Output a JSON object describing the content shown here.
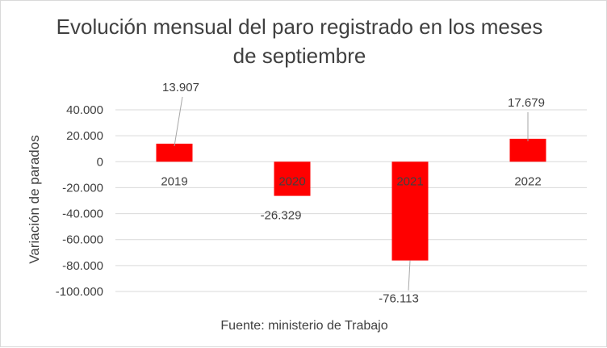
{
  "chart_data": {
    "type": "bar",
    "title": "Evolución mensual del paro registrado en los meses de septiembre",
    "ylabel": "Variación de parados",
    "xlabel": "",
    "source": "Fuente: ministerio de Trabajo",
    "categories": [
      "2019",
      "2020",
      "2021",
      "2022"
    ],
    "values": [
      13907,
      -26329,
      -76113,
      17679
    ],
    "data_labels": [
      "13.907",
      "-26.329",
      "-76.113",
      "17.679"
    ],
    "y_ticks": [
      40000,
      20000,
      0,
      -20000,
      -40000,
      -60000,
      -80000,
      -100000
    ],
    "y_tick_labels": [
      "40.000",
      "20.000",
      "0",
      "-20.000",
      "-40.000",
      "-60.000",
      "-80.000",
      "-100.000"
    ],
    "ylim": [
      -100000,
      40000
    ],
    "grid": true,
    "bar_color": "#ff0000",
    "grid_color": "#d9d9d9",
    "text_color": "#404040"
  }
}
